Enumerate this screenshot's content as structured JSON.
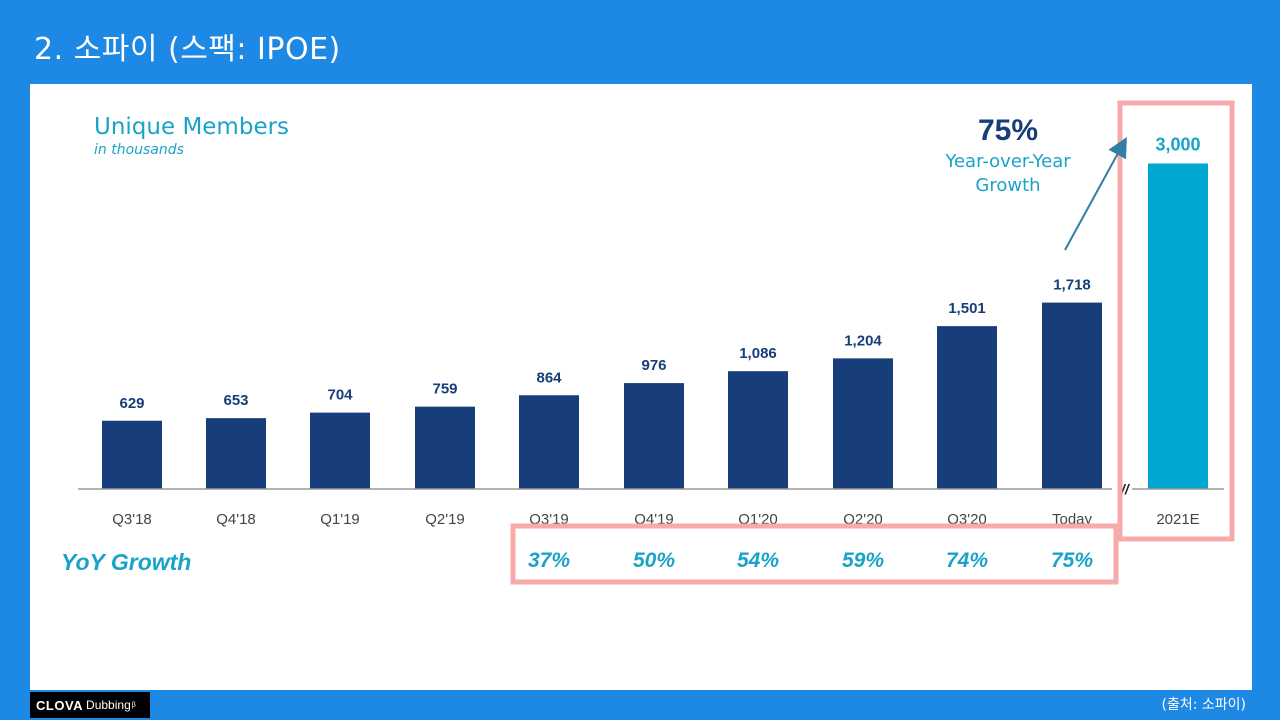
{
  "slide": {
    "title": "2. 소파이 (스팩: IPOE)",
    "source": "(출처: 소파이)",
    "logo_brand": "CLOVA",
    "logo_product": "Dubbing",
    "logo_sup": "β"
  },
  "colors": {
    "background": "#1e88e5",
    "bar": "#173e7a",
    "bar_estimate": "#00a7d1",
    "accent_text": "#1aa3c9",
    "highlight_box": "#f7aaaa"
  },
  "chart_data": {
    "type": "bar",
    "title": "Unique Members",
    "subtitle": "in thousands",
    "categories": [
      "Q3'18",
      "Q4'18",
      "Q1'19",
      "Q2'19",
      "Q3'19",
      "Q4'19",
      "Q1'20",
      "Q2'20",
      "Q3'20",
      "Today",
      "2021E"
    ],
    "values": [
      629,
      653,
      704,
      759,
      864,
      976,
      1086,
      1204,
      1501,
      1718,
      3000
    ],
    "value_labels": [
      "629",
      "653",
      "704",
      "759",
      "864",
      "976",
      "1,086",
      "1,204",
      "1,501",
      "1,718",
      "3,000"
    ],
    "estimate_index": 10,
    "axis_break_marker": "//",
    "yoy_label": "YoY Growth",
    "yoy_growth": [
      {
        "category": "Q3'19",
        "label": "37%"
      },
      {
        "category": "Q4'19",
        "label": "50%"
      },
      {
        "category": "Q1'20",
        "label": "54%"
      },
      {
        "category": "Q2'20",
        "label": "59%"
      },
      {
        "category": "Q3'20",
        "label": "74%"
      },
      {
        "category": "Today",
        "label": "75%"
      }
    ],
    "callout": {
      "value": "75%",
      "line1": "Year-over-Year",
      "line2": "Growth"
    },
    "grid": false,
    "legend": "none"
  }
}
